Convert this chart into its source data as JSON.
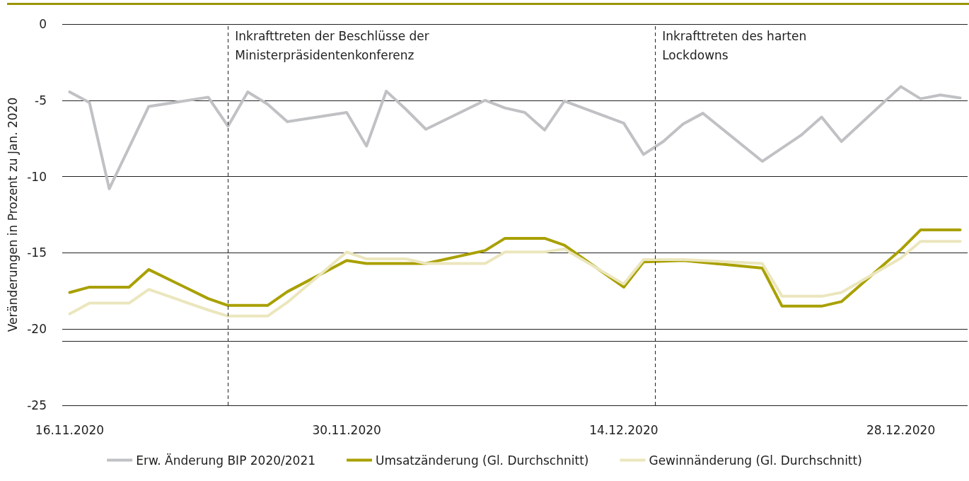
{
  "chart_data": {
    "type": "line",
    "ylabel": "Veränderungen in Prozent zu Jan. 2020",
    "xlim": [
      "2020-11-15T15:00",
      "2020-12-31T09:00"
    ],
    "xticks": [
      {
        "value": "2020-11-16",
        "label": "16.11.2020"
      },
      {
        "value": "2020-11-30",
        "label": "30.11.2020"
      },
      {
        "value": "2020-12-14",
        "label": "14.12.2020"
      },
      {
        "value": "2020-12-28",
        "label": "28.12.2020"
      }
    ],
    "ylim": [
      -25,
      0
    ],
    "yticks": [
      0,
      -5,
      -10,
      -15,
      -20,
      -25
    ],
    "grid": "y",
    "legend": "bottom",
    "marker": "none",
    "line_style": "solid",
    "series": [
      {
        "name": "Erw. Änderung BIP 2020/2021",
        "color": "#c0c1c4",
        "x": [
          "2020-11-16",
          "2020-11-17",
          "2020-11-18",
          "2020-11-20",
          "2020-11-23",
          "2020-11-24",
          "2020-11-25",
          "2020-11-26",
          "2020-11-27",
          "2020-11-30",
          "2020-12-01",
          "2020-12-02",
          "2020-12-03",
          "2020-12-04",
          "2020-12-07",
          "2020-12-08",
          "2020-12-09",
          "2020-12-10",
          "2020-12-11",
          "2020-12-14",
          "2020-12-15",
          "2020-12-16",
          "2020-12-17",
          "2020-12-18",
          "2020-12-21",
          "2020-12-23",
          "2020-12-24",
          "2020-12-25",
          "2020-12-28",
          "2020-12-29",
          "2020-12-30",
          "2020-12-31"
        ],
        "values": [
          -4.45,
          -5.15,
          -10.8,
          -5.4,
          -4.8,
          -6.7,
          -4.45,
          -5.25,
          -6.4,
          -5.8,
          -8.0,
          -4.4,
          -5.6,
          -6.9,
          -5.0,
          -5.5,
          -5.8,
          -6.95,
          -5.05,
          -6.5,
          -8.55,
          -7.7,
          -6.55,
          -5.85,
          -9.0,
          -7.25,
          -6.1,
          -7.7,
          -4.1,
          -4.9,
          -4.65,
          -4.85
        ]
      },
      {
        "name": "Umsatzänderung (Gl. Durchschnitt)",
        "color": "#a9a000",
        "x": [
          "2020-11-16",
          "2020-11-17",
          "2020-11-19",
          "2020-11-20",
          "2020-11-23",
          "2020-11-24",
          "2020-11-26",
          "2020-11-27",
          "2020-11-30",
          "2020-12-01",
          "2020-12-03",
          "2020-12-04",
          "2020-12-07",
          "2020-12-08",
          "2020-12-10",
          "2020-12-11",
          "2020-12-14",
          "2020-12-15",
          "2020-12-17",
          "2020-12-21",
          "2020-12-22",
          "2020-12-24",
          "2020-12-25",
          "2020-12-28",
          "2020-12-29",
          "2020-12-31"
        ],
        "values": [
          -17.6,
          -17.25,
          -17.25,
          -16.1,
          -18.0,
          -18.45,
          -18.45,
          -17.55,
          -15.5,
          -15.7,
          -15.7,
          -15.7,
          -14.85,
          -14.05,
          -14.05,
          -14.5,
          -17.25,
          -15.6,
          -15.5,
          -16.0,
          -18.5,
          -18.5,
          -18.2,
          -14.8,
          -13.5,
          -13.5
        ]
      },
      {
        "name": "Gewinnänderung (Gl. Durchschnitt)",
        "color": "#ebe6bd",
        "x": [
          "2020-11-16",
          "2020-11-17",
          "2020-11-19",
          "2020-11-20",
          "2020-11-23",
          "2020-11-24",
          "2020-11-26",
          "2020-11-27",
          "2020-11-30",
          "2020-12-01",
          "2020-12-03",
          "2020-12-04",
          "2020-12-07",
          "2020-12-08",
          "2020-12-10",
          "2020-12-11",
          "2020-12-14",
          "2020-12-15",
          "2020-12-17",
          "2020-12-21",
          "2020-12-22",
          "2020-12-24",
          "2020-12-25",
          "2020-12-28",
          "2020-12-29",
          "2020-12-31"
        ],
        "values": [
          -19.0,
          -18.3,
          -18.3,
          -17.4,
          -18.75,
          -19.15,
          -19.15,
          -18.25,
          -14.95,
          -15.4,
          -15.4,
          -15.7,
          -15.7,
          -14.95,
          -14.95,
          -14.75,
          -17.05,
          -15.45,
          -15.45,
          -15.7,
          -17.85,
          -17.85,
          -17.6,
          -15.35,
          -14.25,
          -14.25
        ]
      }
    ],
    "ref_lines": [
      {
        "axis": "x",
        "value": "2020-11-24",
        "label": "Inkrafttreten der Beschlüsse der\nMinisterpräsidentenkonferenz",
        "line_style": "dashed",
        "color": "#222222"
      },
      {
        "axis": "x",
        "value": "2020-12-15T14:00",
        "label": "Inkrafttreten des harten\nLockdowns",
        "line_style": "dashed",
        "color": "#222222"
      },
      {
        "axis": "y",
        "value": -20.8,
        "line_style": "solid",
        "color": "#222222"
      }
    ]
  }
}
